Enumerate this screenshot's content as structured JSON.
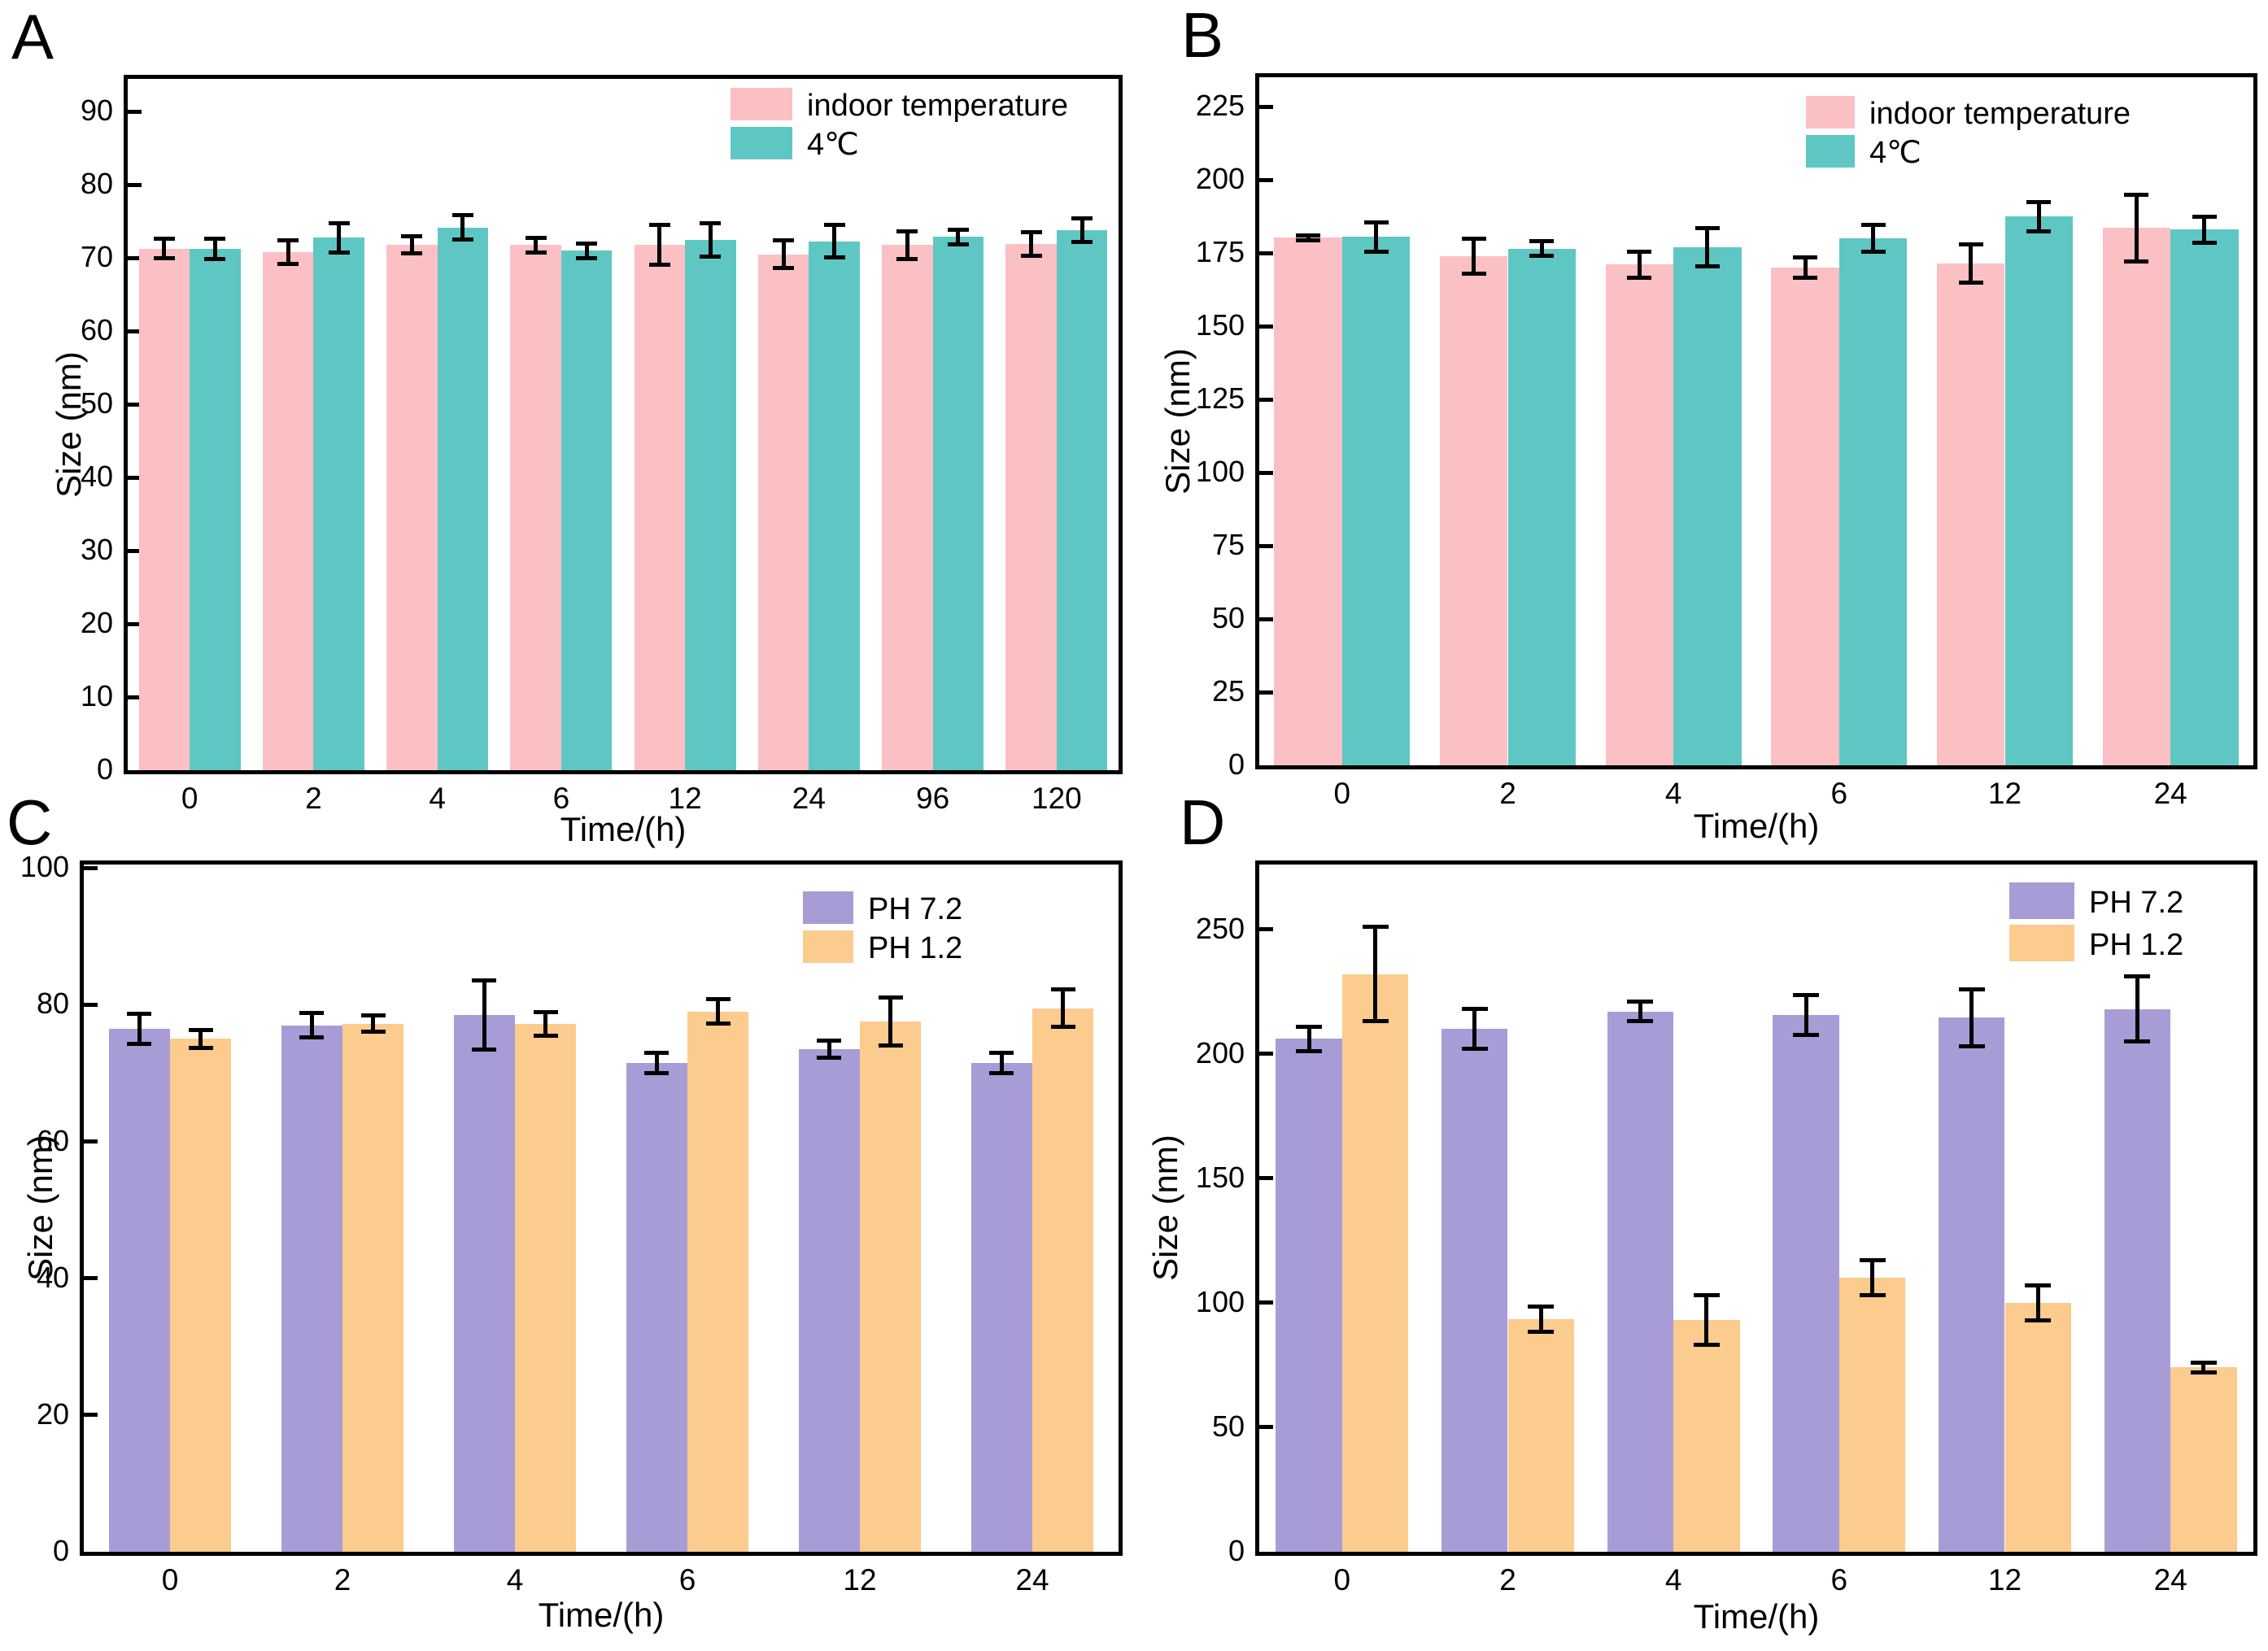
{
  "colors": {
    "indoor_temperature": "#FBC0C3",
    "four_degrees": "#5FC7C3",
    "ph_7_2": "#A89CD7",
    "ph_1_2": "#FCCB8E",
    "axis": "#000000",
    "background": "#FFFFFF"
  },
  "chart_data": [
    {
      "type": "bar",
      "panel_label": "A",
      "ylabel": "Size (nm)",
      "xlabel": "Time/(h)",
      "categories": [
        "0",
        "2",
        "4",
        "6",
        "12",
        "24",
        "96",
        "120"
      ],
      "ylim": [
        0,
        94.5
      ],
      "yticks": [
        0,
        10,
        20,
        30,
        40,
        50,
        60,
        70,
        80,
        90
      ],
      "grid": false,
      "legend_position": "top-right",
      "series": [
        {
          "name": "indoor temperature",
          "color": "#FBC0C3",
          "values": [
            71.3,
            70.8,
            71.8,
            71.8,
            71.8,
            70.5,
            71.8,
            71.9
          ],
          "errors": [
            1.3,
            1.6,
            1.2,
            1.0,
            2.7,
            1.9,
            1.9,
            1.6
          ]
        },
        {
          "name": "4℃",
          "color": "#5FC7C3",
          "values": [
            71.3,
            72.8,
            74.2,
            71.0,
            72.5,
            72.3,
            72.9,
            73.8
          ],
          "errors": [
            1.4,
            2.0,
            1.7,
            1.0,
            2.3,
            2.2,
            1.0,
            1.6
          ]
        }
      ]
    },
    {
      "type": "bar",
      "panel_label": "B",
      "ylabel": "Size (nm)",
      "xlabel": "Time/(h)",
      "categories": [
        "0",
        "2",
        "4",
        "6",
        "12",
        "24"
      ],
      "ylim": [
        0,
        235
      ],
      "yticks": [
        0,
        25,
        50,
        75,
        100,
        125,
        150,
        175,
        200,
        225
      ],
      "grid": false,
      "legend_position": "top-right",
      "series": [
        {
          "name": "indoor temperature",
          "color": "#FBC0C3",
          "values": [
            180.2,
            174.0,
            171.0,
            170.0,
            171.5,
            183.5
          ],
          "errors": [
            0.8,
            6.0,
            4.5,
            3.5,
            6.5,
            11.5
          ]
        },
        {
          "name": "4℃",
          "color": "#5FC7C3",
          "values": [
            180.5,
            176.5,
            177.0,
            180.0,
            187.5,
            183.0
          ],
          "errors": [
            5.0,
            2.5,
            6.5,
            4.5,
            5.0,
            4.5
          ]
        }
      ]
    },
    {
      "type": "bar",
      "panel_label": "C",
      "ylabel": "Size (nm)",
      "xlabel": "Time/(h)",
      "categories": [
        "0",
        "2",
        "4",
        "6",
        "12",
        "24"
      ],
      "ylim": [
        0,
        100.5
      ],
      "yticks": [
        0,
        20,
        40,
        60,
        80,
        100
      ],
      "grid": false,
      "legend_position": "top-right",
      "series": [
        {
          "name": "PH 7.2",
          "color": "#A89CD7",
          "values": [
            76.5,
            77.0,
            78.5,
            71.5,
            73.5,
            71.5
          ],
          "errors": [
            2.2,
            1.8,
            5.0,
            1.5,
            1.3,
            1.5
          ]
        },
        {
          "name": "PH 1.2",
          "color": "#FCCB8E",
          "values": [
            75.0,
            77.2,
            77.2,
            79.0,
            77.5,
            79.5
          ],
          "errors": [
            1.3,
            1.2,
            1.7,
            1.8,
            3.5,
            2.7
          ]
        }
      ]
    },
    {
      "type": "bar",
      "panel_label": "D",
      "ylabel": "Size (nm)",
      "xlabel": "Time/(h)",
      "categories": [
        "0",
        "2",
        "4",
        "6",
        "12",
        "24"
      ],
      "ylim": [
        0,
        276
      ],
      "yticks": [
        0,
        50,
        100,
        150,
        200,
        250
      ],
      "grid": false,
      "legend_position": "top-right",
      "series": [
        {
          "name": "PH 7.2",
          "color": "#A89CD7",
          "values": [
            206.0,
            210.0,
            217.0,
            215.5,
            214.5,
            218.0
          ],
          "errors": [
            5.0,
            8.0,
            4.0,
            8.0,
            11.5,
            13.0
          ]
        },
        {
          "name": "PH 1.2",
          "color": "#FCCB8E",
          "values": [
            232.0,
            93.5,
            93.0,
            110.0,
            100.0,
            74.0
          ],
          "errors": [
            19.0,
            5.0,
            10.0,
            7.0,
            7.0,
            2.0
          ]
        }
      ]
    }
  ]
}
